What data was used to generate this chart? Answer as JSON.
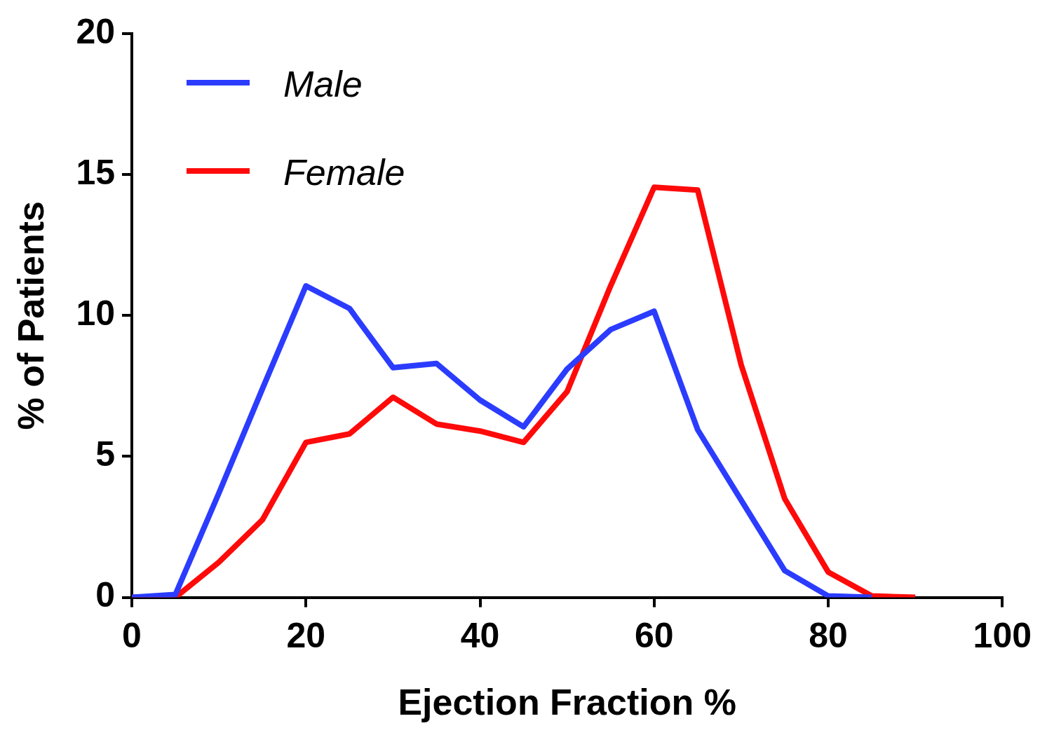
{
  "chart_data": {
    "type": "line",
    "xlabel": "Ejection Fraction %",
    "ylabel": "% of Patients",
    "x": [
      0,
      5,
      10,
      15,
      20,
      25,
      30,
      35,
      40,
      45,
      50,
      55,
      60,
      65,
      70,
      75,
      80,
      85,
      90
    ],
    "series": [
      {
        "name": "Male",
        "color": "#2b3cff",
        "values": [
          0,
          0.1,
          3.7,
          7.4,
          11.05,
          10.25,
          8.15,
          8.3,
          7.0,
          6.05,
          8.1,
          9.5,
          10.15,
          5.95,
          3.45,
          0.95,
          0.05,
          0,
          null
        ]
      },
      {
        "name": "Female",
        "color": "#ff0a0a",
        "values": [
          0,
          0,
          1.25,
          2.75,
          5.5,
          5.8,
          7.1,
          6.15,
          5.9,
          5.5,
          7.3,
          11.05,
          14.55,
          14.45,
          8.25,
          3.5,
          0.9,
          0.05,
          0
        ]
      }
    ],
    "xlim": [
      0,
      100
    ],
    "xticks": [
      0,
      20,
      40,
      60,
      80,
      100
    ],
    "ylim": [
      0,
      20
    ],
    "yticks": [
      0,
      5,
      10,
      15,
      20
    ],
    "grid": false,
    "legend": "top left",
    "marker": "none",
    "line_style": "solid"
  }
}
